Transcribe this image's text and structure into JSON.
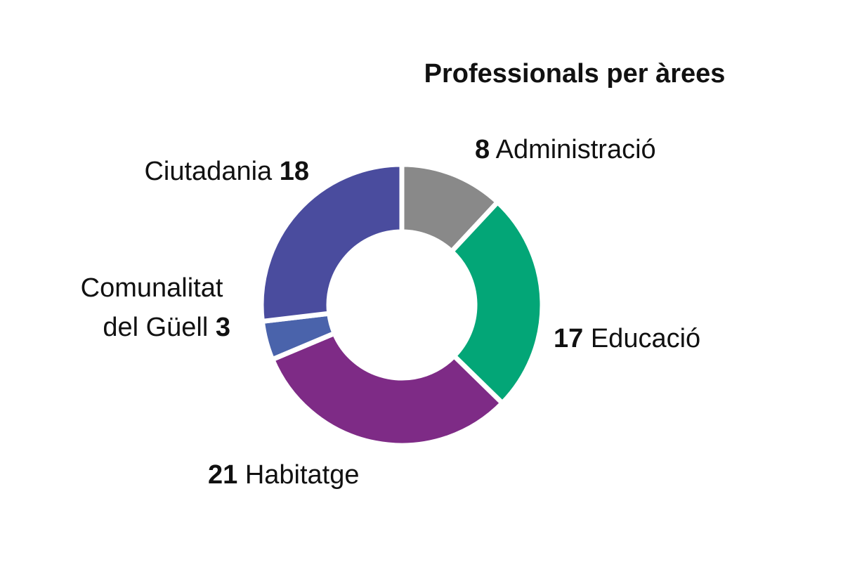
{
  "chart_data": {
    "type": "pie",
    "variant": "donut",
    "title": "Professionals per àrees",
    "slices": [
      {
        "label": "Administració",
        "value": 8,
        "color": "#898989",
        "display": [
          "8",
          " Administració"
        ]
      },
      {
        "label": "Educació",
        "value": 17,
        "color": "#03a677",
        "display": [
          "17",
          " Educació"
        ]
      },
      {
        "label": "Habitatge",
        "value": 21,
        "color": "#7e2b86",
        "display": [
          "21",
          " Habitatge"
        ]
      },
      {
        "label": "Comunalitat del Güell",
        "value": 3,
        "color": "#4a63ab",
        "display": [
          "Comunalitat",
          "del Güell ",
          "3"
        ]
      },
      {
        "label": "Ciutadania",
        "value": 18,
        "color": "#4a4c9e",
        "display": [
          "Ciutadania ",
          "18"
        ]
      }
    ],
    "legend": "none",
    "start_angle": "top, clockwise"
  }
}
